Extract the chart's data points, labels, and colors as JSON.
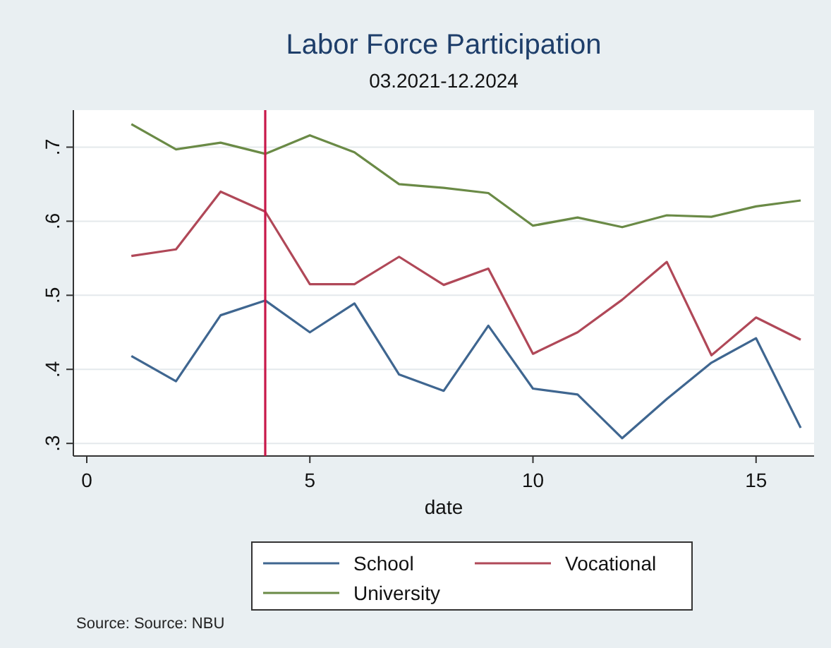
{
  "chart_data": {
    "type": "line",
    "title": "Labor Force Participation",
    "subtitle": "03.2021-12.2024",
    "xlabel": "date",
    "x": [
      1,
      2,
      3,
      4,
      5,
      6,
      7,
      8,
      9,
      10,
      11,
      12,
      13,
      14,
      15,
      16
    ],
    "series": [
      {
        "name": "School",
        "color": "#3f6690",
        "values": [
          0.418,
          0.384,
          0.473,
          0.493,
          0.45,
          0.489,
          0.393,
          0.371,
          0.459,
          0.374,
          0.366,
          0.307,
          0.36,
          0.409,
          0.442,
          0.321
        ]
      },
      {
        "name": "Vocational",
        "color": "#b04858",
        "values": [
          0.553,
          0.562,
          0.64,
          0.613,
          0.515,
          0.515,
          0.552,
          0.514,
          0.536,
          0.421,
          0.45,
          0.494,
          0.545,
          0.419,
          0.47,
          0.44
        ]
      },
      {
        "name": "University",
        "color": "#6a8a46",
        "values": [
          0.731,
          0.697,
          0.706,
          0.691,
          0.716,
          0.693,
          0.65,
          0.645,
          0.638,
          0.594,
          0.605,
          0.592,
          0.608,
          0.606,
          0.62,
          0.628
        ]
      }
    ],
    "xlim": [
      -0.3,
      16.3
    ],
    "ylim": [
      0.283,
      0.75
    ],
    "xticks": [
      0,
      5,
      10,
      15
    ],
    "yticks": [
      {
        "value": 0.3,
        "label": ".3"
      },
      {
        "value": 0.4,
        "label": ".4"
      },
      {
        "value": 0.5,
        "label": ".5"
      },
      {
        "value": 0.6,
        "label": ".6"
      },
      {
        "value": 0.7,
        "label": ".7"
      }
    ],
    "grid": "y",
    "legend": "bottom",
    "marker": "none",
    "line_style": "solid",
    "ref_lines": [
      {
        "axis": "x",
        "value": 4,
        "color": "#c8184a"
      }
    ],
    "annotations": [
      "Source: Source:  NBU"
    ]
  }
}
